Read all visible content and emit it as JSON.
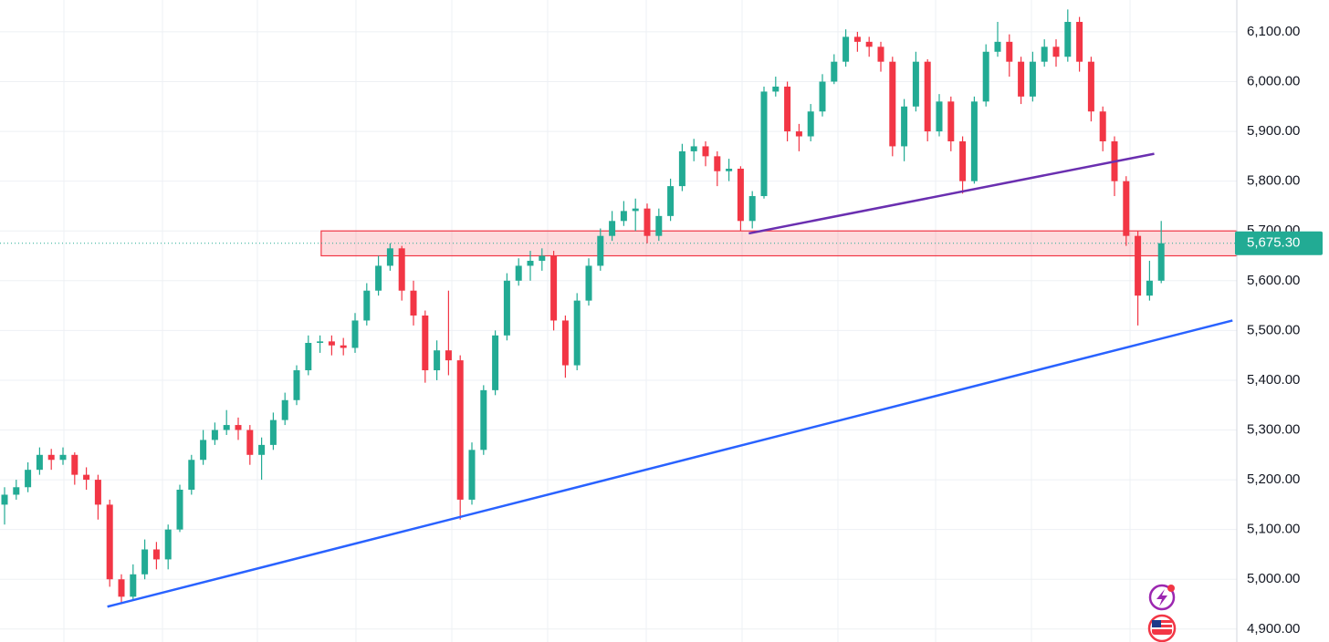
{
  "chart_data": {
    "type": "candlestick",
    "up_color": "#22ab94",
    "down_color": "#f23645",
    "ylim": [
      4874,
      6164
    ],
    "yticks": [
      {
        "value": 4900,
        "label": "4,900.00"
      },
      {
        "value": 5000,
        "label": "5,000.00"
      },
      {
        "value": 5100,
        "label": "5,100.00"
      },
      {
        "value": 5200,
        "label": "5,200.00"
      },
      {
        "value": 5300,
        "label": "5,300.00"
      },
      {
        "value": 5400,
        "label": "5,400.00"
      },
      {
        "value": 5500,
        "label": "5,500.00"
      },
      {
        "value": 5600,
        "label": "5,600.00"
      },
      {
        "value": 5700,
        "label": "5,700.00"
      },
      {
        "value": 5800,
        "label": "5,800.00"
      },
      {
        "value": 5900,
        "label": "5,900.00"
      },
      {
        "value": 6000,
        "label": "6,000.00"
      },
      {
        "value": 6100,
        "label": "6,100.00"
      }
    ],
    "grid": true,
    "open": [
      5150,
      5170,
      5185,
      5220,
      5250,
      5240,
      5250,
      5210,
      5200,
      5150,
      5000,
      4965,
      5010,
      5060,
      5040,
      5100,
      5180,
      5240,
      5280,
      5300,
      5310,
      5300,
      5250,
      5270,
      5320,
      5360,
      5420,
      5475,
      5478,
      5470,
      5465,
      5520,
      5580,
      5630,
      5665,
      5580,
      5530,
      5420,
      5460,
      5440,
      5160,
      5260,
      5380,
      5490,
      5600,
      5630,
      5640,
      5650,
      5520,
      5430,
      5560,
      5630,
      5690,
      5720,
      5740,
      5745,
      5690,
      5730,
      5790,
      5860,
      5870,
      5850,
      5820,
      5825,
      5720,
      5770,
      5980,
      5990,
      5900,
      5890,
      5940,
      6000,
      6040,
      6090,
      6080,
      6070,
      6040,
      5870,
      5950,
      6040,
      5900,
      5960,
      5880,
      5800,
      5960,
      6060,
      6080,
      6040,
      5970,
      6040,
      6070,
      6050,
      6120,
      6040,
      5940,
      5880,
      5800,
      5690,
      5570,
      5600
    ],
    "high": [
      5185,
      5200,
      5235,
      5265,
      5262,
      5265,
      5255,
      5225,
      5210,
      5160,
      5010,
      5030,
      5080,
      5075,
      5110,
      5190,
      5250,
      5300,
      5315,
      5340,
      5325,
      5310,
      5285,
      5335,
      5375,
      5430,
      5490,
      5490,
      5490,
      5485,
      5535,
      5595,
      5650,
      5675,
      5670,
      5600,
      5540,
      5480,
      5580,
      5450,
      5275,
      5390,
      5500,
      5615,
      5645,
      5660,
      5665,
      5660,
      5530,
      5575,
      5645,
      5705,
      5740,
      5760,
      5765,
      5755,
      5745,
      5805,
      5875,
      5885,
      5880,
      5860,
      5845,
      5830,
      5780,
      5990,
      6010,
      6000,
      5915,
      5955,
      6015,
      6055,
      6105,
      6100,
      6090,
      6080,
      6050,
      5965,
      6060,
      6045,
      5975,
      5970,
      5890,
      5970,
      6075,
      6120,
      6095,
      6050,
      6060,
      6085,
      6085,
      6145,
      6130,
      6050,
      5950,
      5890,
      5810,
      5700,
      5640,
      5720
    ],
    "low": [
      5110,
      5160,
      5175,
      5210,
      5220,
      5230,
      5190,
      5180,
      5120,
      4985,
      4950,
      4960,
      5000,
      5020,
      5020,
      5095,
      5170,
      5230,
      5270,
      5290,
      5280,
      5230,
      5200,
      5260,
      5310,
      5350,
      5410,
      5455,
      5450,
      5450,
      5455,
      5510,
      5570,
      5620,
      5560,
      5510,
      5395,
      5400,
      5410,
      5120,
      5150,
      5250,
      5370,
      5480,
      5590,
      5600,
      5620,
      5500,
      5405,
      5420,
      5550,
      5620,
      5680,
      5710,
      5700,
      5675,
      5680,
      5720,
      5780,
      5840,
      5830,
      5790,
      5800,
      5700,
      5705,
      5765,
      5970,
      5880,
      5860,
      5880,
      5930,
      5995,
      6030,
      6060,
      6050,
      6020,
      5850,
      5840,
      5940,
      5880,
      5890,
      5860,
      5775,
      5795,
      5950,
      6050,
      6010,
      5955,
      5960,
      6030,
      6030,
      6040,
      6020,
      5920,
      5860,
      5770,
      5670,
      5510,
      5560,
      5595
    ],
    "close": [
      5170,
      5185,
      5220,
      5250,
      5240,
      5250,
      5210,
      5200,
      5150,
      5000,
      4965,
      5010,
      5060,
      5040,
      5100,
      5180,
      5240,
      5280,
      5300,
      5310,
      5300,
      5250,
      5270,
      5320,
      5360,
      5420,
      5475,
      5478,
      5470,
      5465,
      5520,
      5580,
      5630,
      5665,
      5580,
      5530,
      5420,
      5460,
      5440,
      5160,
      5260,
      5380,
      5490,
      5600,
      5630,
      5640,
      5650,
      5520,
      5430,
      5560,
      5630,
      5690,
      5720,
      5740,
      5745,
      5690,
      5730,
      5790,
      5860,
      5870,
      5850,
      5820,
      5825,
      5720,
      5770,
      5980,
      5990,
      5900,
      5890,
      5940,
      6000,
      6040,
      6090,
      6080,
      6070,
      6040,
      5870,
      5950,
      6040,
      5900,
      5960,
      5880,
      5800,
      5960,
      6060,
      6080,
      6040,
      5970,
      6040,
      6070,
      6050,
      6120,
      6040,
      5940,
      5880,
      5800,
      5690,
      5570,
      5600,
      5675.3
    ],
    "trendlines": [
      {
        "color": "#2962ff",
        "start": {
          "index": 8.8,
          "price": 4945
        },
        "end": {
          "index": 105.1,
          "price": 5520
        }
      },
      {
        "color": "#6a2fb0",
        "start": {
          "index": 63.7,
          "price": 5695
        },
        "end": {
          "index": 98.4,
          "price": 5855
        }
      }
    ],
    "zone": {
      "low": 5650,
      "high": 5700,
      "start_index": 27.1,
      "color": "#f23645"
    },
    "last_price": {
      "value": 5675.3,
      "label": "5,675.30"
    }
  }
}
